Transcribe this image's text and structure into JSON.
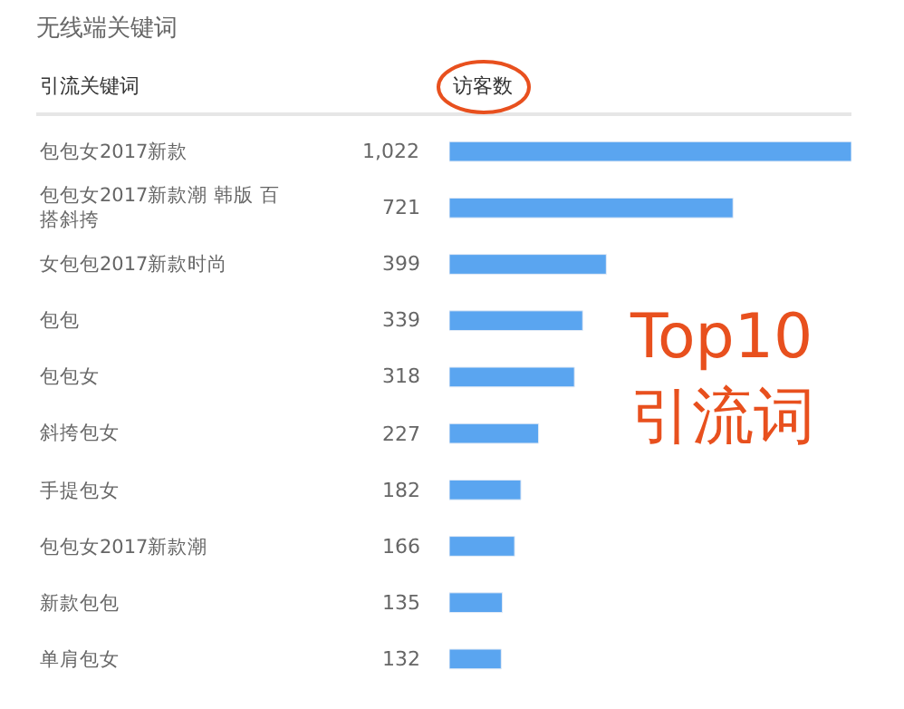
{
  "chart_data": {
    "type": "bar",
    "orientation": "horizontal",
    "title": "无线端关键词",
    "ylabel": "引流关键词",
    "xlabel": "访客数",
    "categories": [
      "包包女2017新款",
      "包包女2017新款潮 韩版 百搭斜挎",
      "女包包2017新款时尚",
      "包包",
      "包包女",
      "斜挎包女",
      "手提包女",
      "包包女2017新款潮",
      "新款包包",
      "单肩包女"
    ],
    "values": [
      1022,
      721,
      399,
      339,
      318,
      227,
      182,
      166,
      135,
      132
    ],
    "value_labels": [
      "1,022",
      "721",
      "399",
      "339",
      "318",
      "227",
      "182",
      "166",
      "135",
      "132"
    ],
    "color": "#5aa5f0",
    "xlim": [
      0,
      1022
    ],
    "tick_labels": false,
    "legend": false,
    "annotations": [
      "Top10 引流词"
    ]
  }
}
